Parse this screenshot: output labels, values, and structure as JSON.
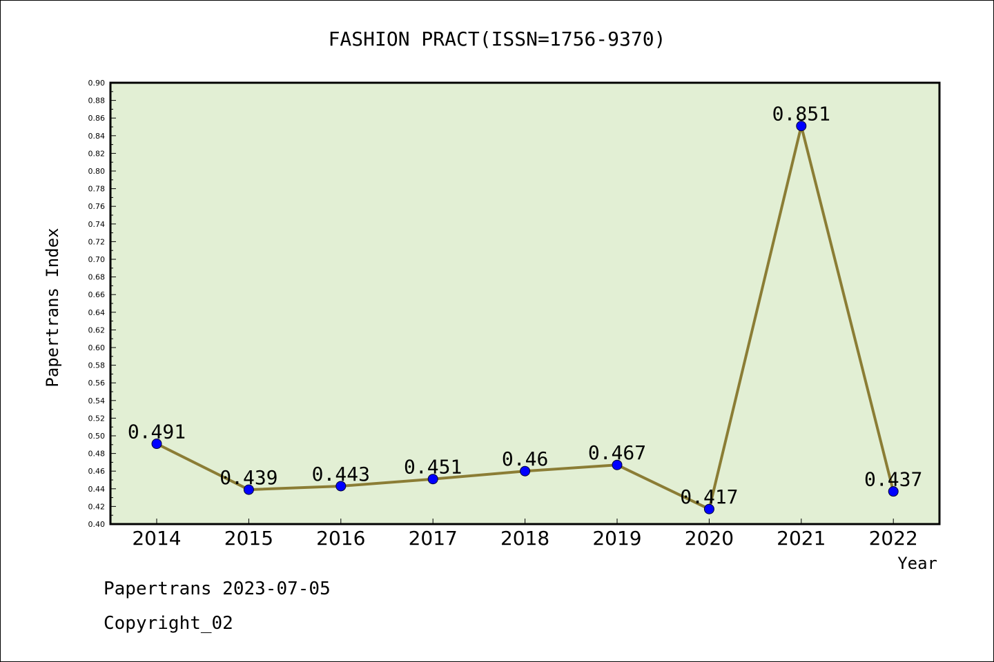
{
  "chart_data": {
    "type": "line",
    "title": "FASHION PRACT(ISSN=1756-9370)",
    "xlabel": "Year",
    "ylabel": "Papertrans Index",
    "categories": [
      "2014",
      "2015",
      "2016",
      "2017",
      "2018",
      "2019",
      "2020",
      "2021",
      "2022"
    ],
    "series": [
      {
        "values": [
          0.491,
          0.439,
          0.443,
          0.451,
          0.46,
          0.467,
          0.417,
          0.851,
          0.437
        ],
        "labels": [
          "0.491",
          "0.439",
          "0.443",
          "0.451",
          "0.46",
          "0.467",
          "0.417",
          "0.851",
          "0.437"
        ]
      }
    ],
    "ylim": [
      0.4,
      0.9
    ],
    "yticks": [
      "0.40",
      "0.42",
      "0.44",
      "0.46",
      "0.48",
      "0.50",
      "0.52",
      "0.54",
      "0.56",
      "0.58",
      "0.60",
      "0.62",
      "0.64",
      "0.66",
      "0.68",
      "0.70",
      "0.72",
      "0.74",
      "0.76",
      "0.78",
      "0.80",
      "0.82",
      "0.84",
      "0.86",
      "0.88",
      "0.90"
    ],
    "grid": false,
    "colors": {
      "plot_bg": "#e2efd4",
      "line": "#8b7d35",
      "marker": "#0000ff"
    }
  },
  "footer": {
    "line1": "Papertrans 2023-07-05",
    "line2": "Copyright_02"
  }
}
